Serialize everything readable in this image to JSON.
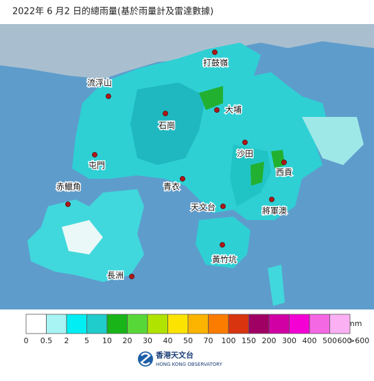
{
  "header": {
    "title": "2022年 6 月2 日的總雨量(基於雨量計及雷達數據)"
  },
  "stations": [
    "打鼓嶺",
    "流浮山",
    "大埔",
    "石崗",
    "沙田",
    "屯門",
    "西貢",
    "青衣",
    "赤鱲角",
    "天文台",
    "將軍澳",
    "黃竹坑",
    "長洲"
  ],
  "legend": {
    "unit": "mm",
    "labels": [
      "0",
      "0.5",
      "2",
      "5",
      "10",
      "20",
      "30",
      "40",
      "50",
      "70",
      "100",
      "150",
      "200",
      "300",
      "400",
      "500",
      "600",
      ">600"
    ],
    "colors": [
      "#ffffff",
      "#a8f4f4",
      "#00eef4",
      "#20cccc",
      "#18b418",
      "#58d838",
      "#b0e400",
      "#fce400",
      "#fcb400",
      "#fc7c00",
      "#d83410",
      "#a00064",
      "#d000a4",
      "#f400d4",
      "#f468e4",
      "#fcb0f4"
    ]
  },
  "logo": {
    "name": "香港天文台",
    "english": "HONG KONG OBSERVATORY"
  }
}
